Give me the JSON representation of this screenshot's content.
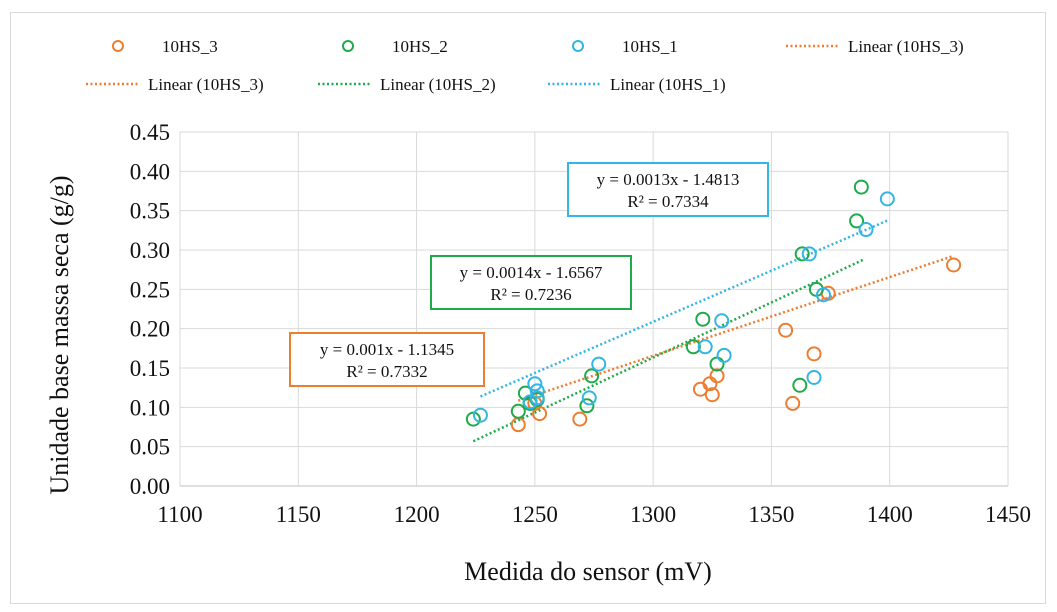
{
  "chart_data": {
    "type": "scatter",
    "xlabel": "Medida do sensor (mV)",
    "ylabel": "Unidade base massa seca (g/g)",
    "xlim": [
      1100,
      1450
    ],
    "ylim": [
      0,
      0.45
    ],
    "xticks": [
      "1100",
      "1150",
      "1200",
      "1250",
      "1300",
      "1350",
      "1400",
      "1450"
    ],
    "yticks": [
      "0.00",
      "0.05",
      "0.10",
      "0.15",
      "0.20",
      "0.25",
      "0.30",
      "0.35",
      "0.40",
      "0.45"
    ],
    "grid": true,
    "legend_position": "top",
    "series": [
      {
        "name": "10HS_3",
        "color": "#ed7d31",
        "points": [
          [
            1243,
            0.078
          ],
          [
            1252,
            0.092
          ],
          [
            1250,
            0.105
          ],
          [
            1269,
            0.085
          ],
          [
            1320,
            0.123
          ],
          [
            1324,
            0.13
          ],
          [
            1327,
            0.14
          ],
          [
            1325,
            0.116
          ],
          [
            1356,
            0.198
          ],
          [
            1359,
            0.105
          ],
          [
            1368,
            0.168
          ],
          [
            1374,
            0.245
          ],
          [
            1427,
            0.281
          ]
        ],
        "trendline": {
          "label": "Linear (10HS_3)",
          "x_range": [
            1243,
            1427
          ],
          "slope": 0.001,
          "intercept": -1.1345,
          "equation": "y = 0.001x - 1.1345",
          "r2": "R² = 0.7332"
        }
      },
      {
        "name": "10HS_2",
        "color": "#1faa4b",
        "points": [
          [
            1224,
            0.085
          ],
          [
            1243,
            0.095
          ],
          [
            1246,
            0.118
          ],
          [
            1251,
            0.11
          ],
          [
            1248,
            0.105
          ],
          [
            1272,
            0.102
          ],
          [
            1274,
            0.14
          ],
          [
            1317,
            0.177
          ],
          [
            1321,
            0.212
          ],
          [
            1327,
            0.155
          ],
          [
            1362,
            0.128
          ],
          [
            1363,
            0.295
          ],
          [
            1369,
            0.25
          ],
          [
            1386,
            0.337
          ],
          [
            1388,
            0.38
          ]
        ],
        "trendline": {
          "label": "Linear (10HS_2)",
          "x_range": [
            1224,
            1389
          ],
          "slope": 0.0014,
          "intercept": -1.6567,
          "equation": "y = 0.0014x - 1.6567",
          "r2": "R² = 0.7236"
        }
      },
      {
        "name": "10HS_1",
        "color": "#33b5e5",
        "points": [
          [
            1227,
            0.09
          ],
          [
            1248,
            0.107
          ],
          [
            1250,
            0.13
          ],
          [
            1251,
            0.121
          ],
          [
            1251,
            0.112
          ],
          [
            1273,
            0.112
          ],
          [
            1277,
            0.155
          ],
          [
            1322,
            0.177
          ],
          [
            1329,
            0.21
          ],
          [
            1330,
            0.166
          ],
          [
            1366,
            0.295
          ],
          [
            1368,
            0.138
          ],
          [
            1372,
            0.243
          ],
          [
            1390,
            0.326
          ],
          [
            1399,
            0.365
          ]
        ],
        "trendline": {
          "label": "Linear (10HS_1)",
          "x_range": [
            1227,
            1399
          ],
          "slope": 0.0013,
          "intercept": -1.4813,
          "equation": "y = 0.0013x - 1.4813",
          "r2": "R² = 0.7334"
        }
      }
    ]
  }
}
